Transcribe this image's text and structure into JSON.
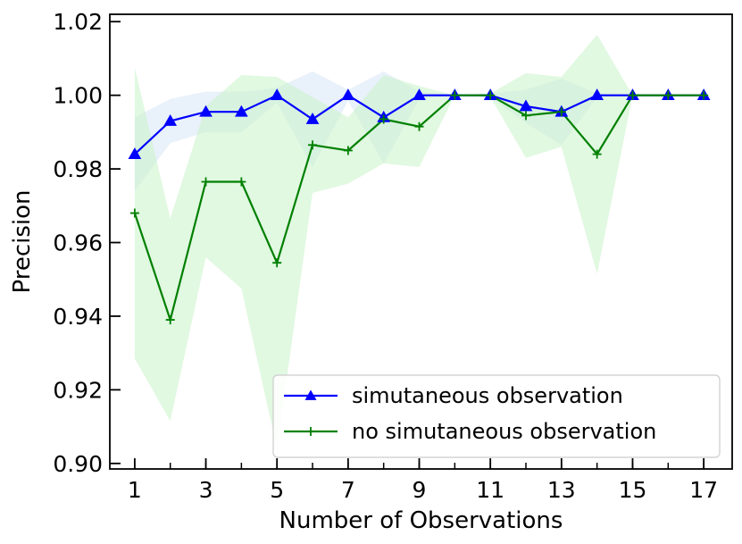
{
  "chart_data": {
    "type": "line",
    "title": "",
    "xlabel": "Number of Observations",
    "ylabel": "Precision",
    "xlim": [
      0.3,
      17.8
    ],
    "ylim": [
      0.8985,
      1.022
    ],
    "x": [
      1,
      2,
      3,
      4,
      5,
      6,
      7,
      8,
      9,
      10,
      11,
      12,
      13,
      14,
      15,
      16,
      17
    ],
    "xticks": [
      1,
      3,
      5,
      7,
      9,
      11,
      13,
      15,
      17
    ],
    "xtick_labels": [
      "1",
      "3",
      "5",
      "7",
      "9",
      "11",
      "13",
      "15",
      "17"
    ],
    "yticks": [
      0.9,
      0.92,
      0.94,
      0.96,
      0.98,
      1.0,
      1.02
    ],
    "ytick_labels": [
      "0.90",
      "0.92",
      "0.94",
      "0.96",
      "0.98",
      "1.00",
      "1.02"
    ],
    "legend_position": "lower-right",
    "series": [
      {
        "name": "simutaneous observation",
        "color": "#0000ff",
        "band_color": "#cfe0f3",
        "marker": "triangle",
        "values": [
          0.984,
          0.993,
          0.9955,
          0.9955,
          1.0,
          0.9935,
          1.0,
          0.994,
          1.0,
          1.0,
          1.0,
          0.997,
          0.9955,
          1.0,
          1.0,
          1.0,
          1.0
        ],
        "upper": [
          0.994,
          0.999,
          1.001,
          1.001,
          1.002,
          1.0065,
          1.0015,
          1.0065,
          1.001,
          1.0,
          1.0005,
          1.0015,
          1.0045,
          1.0005,
          1.0,
          1.0,
          1.0
        ],
        "lower": [
          0.974,
          0.987,
          0.99,
          0.99,
          0.998,
          0.9805,
          0.9985,
          0.9815,
          0.999,
          1.0,
          0.9995,
          0.9925,
          0.9865,
          0.9995,
          1.0,
          1.0,
          1.0
        ]
      },
      {
        "name": "no simutaneous observation",
        "color": "#008000",
        "band_color": "#c8f2c8",
        "marker": "plus",
        "values": [
          0.968,
          0.939,
          0.9765,
          0.9765,
          0.9545,
          0.9865,
          0.985,
          0.9935,
          0.9915,
          1.0,
          1.0,
          0.9945,
          0.9955,
          0.984,
          1.0,
          1.0,
          1.0
        ],
        "upper": [
          1.0075,
          0.9665,
          0.997,
          1.0055,
          1.005,
          0.9995,
          0.994,
          1.0055,
          1.0025,
          1.0,
          1.0005,
          1.006,
          1.005,
          1.0165,
          1.0,
          1.0,
          1.0
        ],
        "lower": [
          0.9285,
          0.9115,
          0.956,
          0.9475,
          0.904,
          0.9735,
          0.976,
          0.9815,
          0.9805,
          1.0,
          0.9995,
          0.983,
          0.986,
          0.9515,
          1.0,
          1.0,
          1.0
        ]
      }
    ]
  }
}
